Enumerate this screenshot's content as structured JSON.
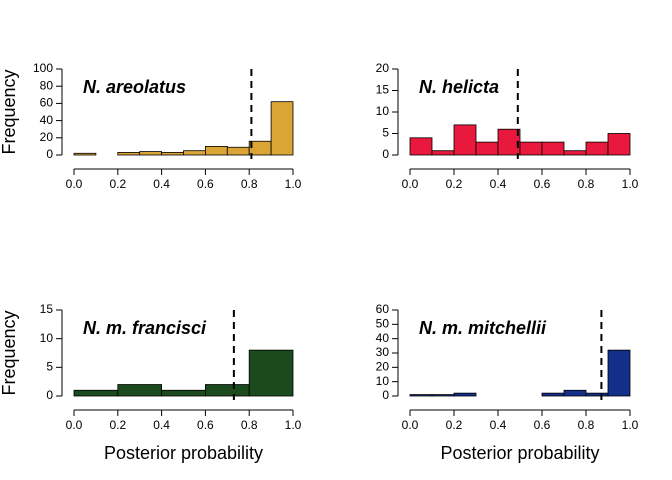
{
  "chart_data": [
    {
      "type": "histogram",
      "title": "N. areolatus",
      "ylabel": "Frequency",
      "color": "#dba535",
      "bins": [
        0.0,
        0.1,
        0.2,
        0.3,
        0.4,
        0.5,
        0.6,
        0.7,
        0.8,
        0.9,
        1.0
      ],
      "values": [
        2,
        0,
        3,
        4,
        3,
        5,
        10,
        9,
        16,
        62
      ],
      "vline": 0.81,
      "xlim": [
        0,
        1
      ],
      "xticks": [
        {
          "value": 0,
          "label": "0.0"
        },
        0.2,
        0.4,
        0.6,
        0.8,
        {
          "value": 1,
          "label": "1.0"
        }
      ],
      "ylim": [
        0,
        100
      ],
      "yticks": [
        0,
        20,
        40,
        60,
        80,
        100
      ]
    },
    {
      "type": "histogram",
      "title": "N. helicta",
      "color": "#e8193c",
      "bins": [
        0.0,
        0.1,
        0.2,
        0.3,
        0.4,
        0.5,
        0.6,
        0.7,
        0.8,
        0.9,
        1.0
      ],
      "values": [
        4,
        1,
        7,
        3,
        6,
        3,
        3,
        1,
        3,
        5
      ],
      "vline": 0.49,
      "xlim": [
        0,
        1
      ],
      "xticks": [
        {
          "value": 0,
          "label": "0.0"
        },
        0.2,
        0.4,
        0.6,
        0.8,
        {
          "value": 1,
          "label": "1.0"
        }
      ],
      "ylim": [
        0,
        20
      ],
      "yticks": [
        0,
        5,
        10,
        15,
        20
      ]
    },
    {
      "type": "histogram",
      "title": "N. m. francisci",
      "ylabel": "Frequency",
      "xlabel": "Posterior probability",
      "color": "#1b4a1f",
      "bins": [
        0.0,
        0.2,
        0.4,
        0.6,
        0.8,
        1.0
      ],
      "values": [
        1,
        2,
        1,
        2,
        8
      ],
      "vline": 0.73,
      "xlim": [
        0,
        1
      ],
      "xticks": [
        {
          "value": 0,
          "label": "0.0"
        },
        0.2,
        0.4,
        0.6,
        0.8,
        {
          "value": 1,
          "label": "1.0"
        }
      ],
      "ylim": [
        0,
        15
      ],
      "yticks": [
        0,
        5,
        10,
        15
      ]
    },
    {
      "type": "histogram",
      "title": "N. m. mitchellii",
      "xlabel": "Posterior probability",
      "color": "#132f8a",
      "bins": [
        0.0,
        0.1,
        0.2,
        0.3,
        0.4,
        0.5,
        0.6,
        0.7,
        0.8,
        0.9,
        1.0
      ],
      "values": [
        1,
        1,
        2,
        0,
        0,
        0,
        2,
        4,
        2,
        32
      ],
      "vline": 0.87,
      "xlim": [
        0,
        1
      ],
      "xticks": [
        {
          "value": 0,
          "label": "0.0"
        },
        0.2,
        0.4,
        0.6,
        0.8,
        {
          "value": 1,
          "label": "1.0"
        }
      ],
      "ylim": [
        0,
        60
      ],
      "yticks": [
        0,
        10,
        20,
        30,
        40,
        50,
        60
      ]
    }
  ]
}
